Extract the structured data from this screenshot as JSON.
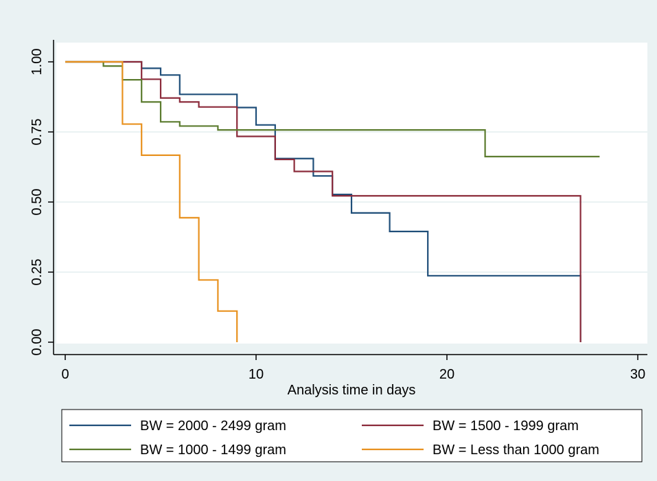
{
  "chart_data": {
    "type": "line",
    "xlabel": "Analysis time in days",
    "ylabel": "",
    "xlim": [
      0,
      30
    ],
    "ylim": [
      0,
      1
    ],
    "x_ticks": [
      "0",
      "10",
      "20",
      "30"
    ],
    "y_ticks": [
      "0.00",
      "0.25",
      "0.50",
      "0.75",
      "1.00"
    ],
    "grid": true,
    "legend_position": "bottom",
    "series": [
      {
        "name": "BW = 2000 - 2499 gram",
        "color": "#1f4e79",
        "x": [
          0,
          4,
          5,
          6,
          9,
          10,
          11,
          13,
          14,
          15,
          17,
          19,
          27,
          27
        ],
        "y": [
          1.0,
          0.977,
          0.953,
          0.884,
          0.837,
          0.775,
          0.655,
          0.593,
          0.527,
          0.461,
          0.395,
          0.237,
          0.237,
          0.0
        ]
      },
      {
        "name": "BW = 1500 - 1999 gram",
        "color": "#8b2a3a",
        "x": [
          0,
          4,
          5,
          6,
          7,
          9,
          11,
          12,
          14,
          27,
          27
        ],
        "y": [
          1.0,
          0.938,
          0.871,
          0.857,
          0.839,
          0.734,
          0.652,
          0.609,
          0.522,
          0.522,
          0.0
        ]
      },
      {
        "name": "BW = 1000 - 1499 gram",
        "color": "#5b7b2e",
        "x": [
          0,
          2,
          3,
          4,
          5,
          6,
          8,
          22,
          28
        ],
        "y": [
          1.0,
          0.985,
          0.936,
          0.857,
          0.786,
          0.771,
          0.757,
          0.662,
          0.662
        ]
      },
      {
        "name": "BW = Less than 1000 gram",
        "color": "#e8911f",
        "x": [
          0,
          3,
          4,
          6,
          7,
          8,
          9,
          9
        ],
        "y": [
          1.0,
          0.778,
          0.667,
          0.444,
          0.222,
          0.111,
          0.111,
          0.0
        ]
      }
    ]
  }
}
